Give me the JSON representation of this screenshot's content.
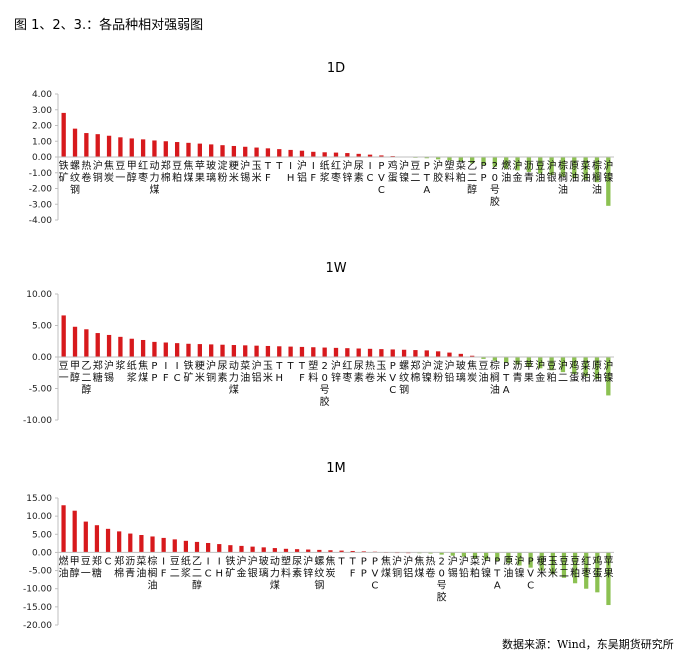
{
  "page": {
    "title": "图 1、2、3.：各品种相对强弱图",
    "source": "数据来源：Wind，东吴期货研究所"
  },
  "colors": {
    "positive": "#d7191c",
    "negative": "#8cc152",
    "axis": "#bfbfbf"
  },
  "chart_data": [
    {
      "type": "bar",
      "title": "1D",
      "ylim": [
        -4.0,
        4.0
      ],
      "yticks": [
        -4,
        -3,
        -2,
        -1,
        0,
        1,
        2,
        3,
        4
      ],
      "ytick_labels": [
        "-4.00",
        "-3.00",
        "-2.00",
        "-1.00",
        "0.00",
        "1.00",
        "2.00",
        "3.00",
        "4.00"
      ],
      "grid": false,
      "categories": [
        "铁矿",
        "螺纹钢",
        "热卷",
        "沪铜",
        "焦炭",
        "豆一",
        "甲醇",
        "红枣",
        "动力煤",
        "郑棉",
        "豆粕",
        "焦煤",
        "苹果",
        "玻璃",
        "淀粉",
        "粳米",
        "沪锡",
        "玉米",
        "TF",
        "T",
        "IH",
        "沪铝",
        "IF",
        "纸浆",
        "红枣",
        "沪锌",
        "尿素",
        "IC",
        "PVC",
        "鸡蛋",
        "沪镍",
        "豆二",
        "PTA",
        "沪胶",
        "塑料",
        "菜粕",
        "乙二醇",
        "PP",
        "20号胶",
        "燃油",
        "沪金",
        "沥青",
        "豆油",
        "沪银",
        "棕榈油",
        "原油",
        "菜油",
        "棕榈油",
        "沪镍"
      ],
      "values": [
        2.8,
        1.8,
        1.52,
        1.45,
        1.35,
        1.25,
        1.18,
        1.12,
        1.05,
        1.0,
        0.95,
        0.9,
        0.85,
        0.8,
        0.75,
        0.7,
        0.65,
        0.6,
        0.55,
        0.5,
        0.45,
        0.4,
        0.33,
        0.3,
        0.28,
        0.25,
        0.2,
        0.15,
        0.1,
        0.06,
        0.03,
        -0.04,
        -0.08,
        -0.15,
        -0.22,
        -0.3,
        -0.4,
        -0.5,
        -0.62,
        -0.75,
        -0.85,
        -0.95,
        -1.05,
        -1.15,
        -1.25,
        -1.35,
        -1.45,
        -1.6,
        -3.1
      ]
    },
    {
      "type": "bar",
      "title": "1W",
      "ylim": [
        -10.0,
        10.0
      ],
      "yticks": [
        -10,
        -5,
        0,
        5,
        10
      ],
      "ytick_labels": [
        "-10.00",
        "-5.00",
        "0.00",
        "5.00",
        "10.00"
      ],
      "grid": false,
      "categories": [
        "豆一",
        "甲醇",
        "乙二醇",
        "郑糖",
        "沪锡",
        "浆",
        "纸浆",
        "焦煤",
        "PP",
        "IF",
        "IC",
        "铁矿",
        "粳米",
        "沪铜",
        "尿素",
        "动力煤",
        "菜油",
        "沪铝",
        "玉米",
        "TH",
        "T",
        "TF",
        "塑料",
        "20号胶",
        "沪锌",
        "红枣",
        "尿素",
        "热卷",
        "玉米",
        "PVC",
        "螺纹钢",
        "郑棉",
        "沪镍",
        "淀粉",
        "沪铅",
        "玻璃",
        "焦炭",
        "豆油",
        "棕榈油",
        "PTA",
        "沥青",
        "苹果",
        "沪金",
        "豆粕",
        "沪二",
        "鸡蛋",
        "菜粕",
        "原油",
        "沪镍"
      ],
      "values": [
        6.6,
        4.8,
        4.4,
        3.8,
        3.5,
        3.2,
        2.9,
        2.7,
        2.4,
        2.3,
        2.2,
        2.1,
        2.05,
        2.0,
        1.95,
        1.9,
        1.85,
        1.8,
        1.75,
        1.7,
        1.65,
        1.6,
        1.55,
        1.5,
        1.45,
        1.4,
        1.35,
        1.3,
        1.25,
        1.2,
        1.15,
        1.1,
        1.05,
        0.9,
        0.7,
        0.5,
        0.2,
        -0.3,
        -0.6,
        -0.9,
        -1.2,
        -1.5,
        -1.8,
        -2.1,
        -2.4,
        -2.7,
        -3.1,
        -3.5,
        -6.1
      ]
    },
    {
      "type": "bar",
      "title": "1M",
      "ylim": [
        -20.0,
        15.0
      ],
      "yticks": [
        -20,
        -15,
        -10,
        -5,
        0,
        5,
        10,
        15
      ],
      "ytick_labels": [
        "-20.00",
        "-15.00",
        "-10.00",
        "-5.00",
        "0.00",
        "5.00",
        "10.00",
        "15.00"
      ],
      "grid": false,
      "categories": [
        "燃油",
        "甲醇",
        "豆一",
        "郑糖",
        "C",
        "郑棉",
        "沥青",
        "菜油",
        "棕榈油",
        "IF",
        "豆二",
        "纸浆",
        "乙二醇",
        "IC",
        "IH",
        "铁矿",
        "沪金",
        "沪银",
        "玻璃",
        "动力煤",
        "塑料",
        "尿素",
        "沪锌",
        "螺纹钢",
        "焦炭",
        "T",
        "TF",
        "PP",
        "PVC",
        "焦煤",
        "沪铜",
        "沪铝",
        "焦煤",
        "热卷",
        "20号胶",
        "沪锡",
        "沪铅",
        "菜粕",
        "沪镍",
        "PTA",
        "原油",
        "沪镍",
        "PVC",
        "粳米",
        "玉米",
        "豆二",
        "豆粕",
        "红枣",
        "鸡蛋",
        "苹果"
      ],
      "values": [
        13.0,
        11.5,
        8.5,
        7.5,
        6.5,
        5.8,
        5.2,
        4.8,
        4.4,
        4.0,
        3.6,
        3.2,
        2.9,
        2.6,
        2.3,
        2.0,
        1.8,
        1.6,
        1.4,
        1.2,
        1.0,
        0.9,
        0.8,
        0.7,
        0.6,
        0.5,
        0.4,
        0.3,
        0.2,
        0.1,
        0.05,
        0.02,
        -0.1,
        -0.3,
        -0.6,
        -0.9,
        -1.2,
        -1.6,
        -2.0,
        -2.5,
        -3.0,
        -3.6,
        -4.2,
        -5.0,
        -6.0,
        -7.0,
        -8.5,
        -10.0,
        -11.0,
        -14.5
      ]
    }
  ]
}
